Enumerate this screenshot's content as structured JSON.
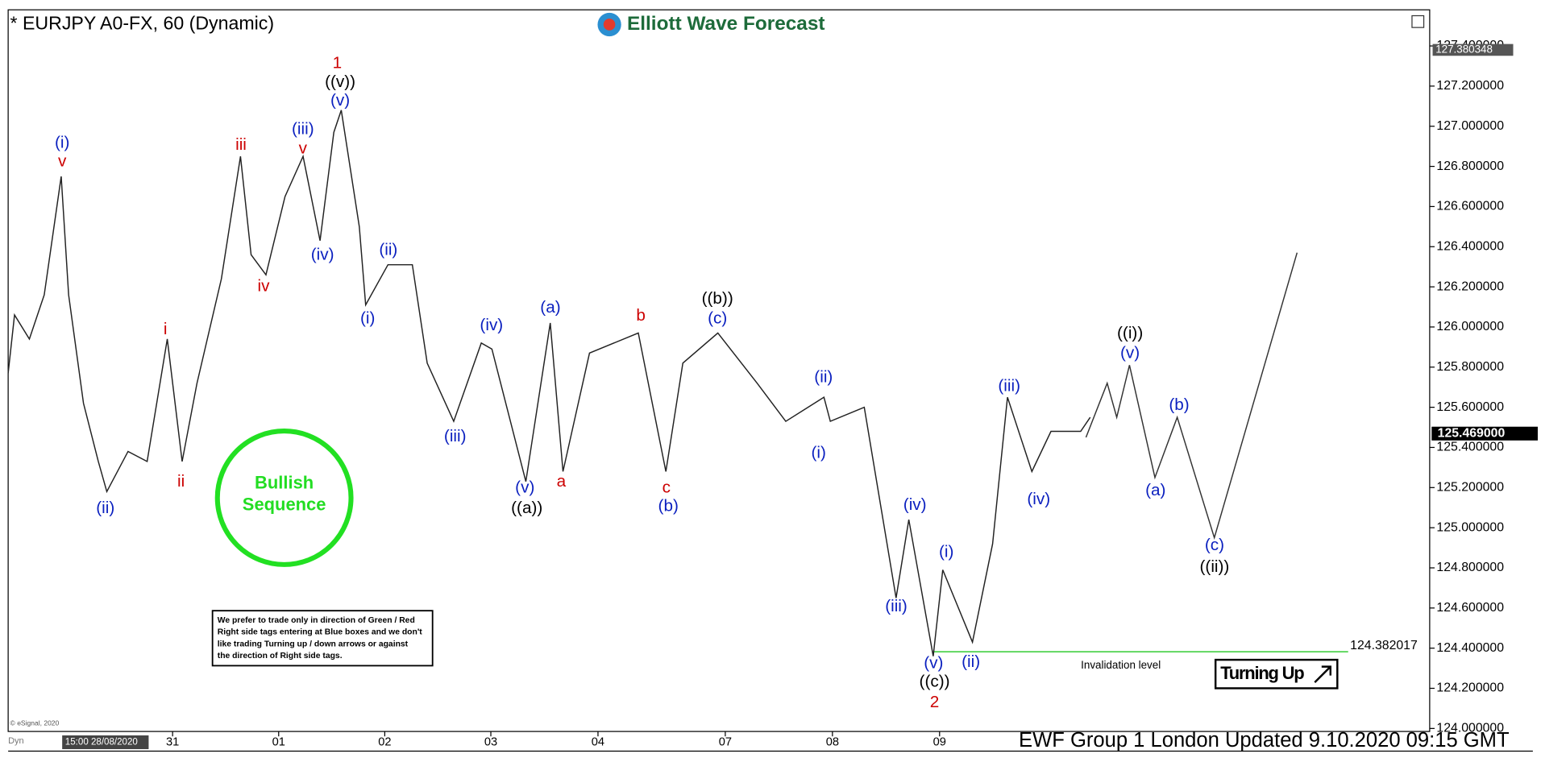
{
  "chart_data": {
    "type": "line",
    "title": "* EURJPY A0-FX, 60 (Dynamic)",
    "brand": "Elliott Wave Forecast",
    "footer": "EWF Group 1 London Updated 9.10.2020 09:15 GMT",
    "copyright": "© eSignal, 2020",
    "start_label": "15:00 28/08/2020",
    "mode_label": "Dyn",
    "xlim": [
      0,
      13.4
    ],
    "ylim": [
      123.985,
      127.58
    ],
    "xticks": [
      {
        "value": 1.55,
        "label": "31"
      },
      {
        "value": 2.55,
        "label": "01"
      },
      {
        "value": 3.55,
        "label": "02"
      },
      {
        "value": 4.55,
        "label": "03"
      },
      {
        "value": 5.56,
        "label": "04"
      },
      {
        "value": 6.76,
        "label": "07"
      },
      {
        "value": 7.77,
        "label": "08"
      },
      {
        "value": 8.78,
        "label": "09"
      }
    ],
    "yticks": [
      {
        "value": 124.0,
        "label": "124.000000"
      },
      {
        "value": 124.2,
        "label": "124.200000"
      },
      {
        "value": 124.4,
        "label": "124.400000"
      },
      {
        "value": 124.6,
        "label": "124.600000"
      },
      {
        "value": 124.8,
        "label": "124.800000"
      },
      {
        "value": 125.0,
        "label": "125.000000"
      },
      {
        "value": 125.2,
        "label": "125.200000"
      },
      {
        "value": 125.4,
        "label": "125.400000"
      },
      {
        "value": 125.6,
        "label": "125.600000"
      },
      {
        "value": 125.8,
        "label": "125.800000"
      },
      {
        "value": 126.0,
        "label": "126.000000"
      },
      {
        "value": 126.2,
        "label": "126.200000"
      },
      {
        "value": 126.4,
        "label": "126.400000"
      },
      {
        "value": 126.6,
        "label": "126.600000"
      },
      {
        "value": 126.8,
        "label": "126.800000"
      },
      {
        "value": 127.0,
        "label": "127.000000"
      },
      {
        "value": 127.2,
        "label": "127.200000"
      },
      {
        "value": 127.4,
        "label": "127.400000"
      }
    ],
    "series": [
      {
        "color": "#222222",
        "x": [
          0,
          0.06,
          0.2,
          0.34,
          0.5,
          0.57,
          0.71,
          0.85,
          0.93,
          1.13,
          1.31,
          1.5,
          1.64,
          1.78,
          2.01,
          2.19,
          2.29,
          2.43,
          2.61,
          2.78,
          2.94,
          3.07,
          3.14,
          3.31,
          3.37,
          3.58,
          3.81,
          3.95,
          4.2,
          4.46,
          4.56,
          4.88,
          5.11,
          5.23,
          5.48,
          5.94,
          6.2,
          6.36,
          6.69,
          7.06,
          7.33,
          7.69,
          7.75,
          8.07,
          8.37,
          8.49,
          8.72,
          8.81,
          9.09,
          9.28,
          9.42,
          9.65,
          9.83,
          10.11,
          10.2
        ],
        "values": [
          125.77,
          126.06,
          125.94,
          126.16,
          126.75,
          126.16,
          125.62,
          125.33,
          125.18,
          125.38,
          125.33,
          125.94,
          125.33,
          125.72,
          126.24,
          126.85,
          126.36,
          126.26,
          126.65,
          126.85,
          126.43,
          126.97,
          127.08,
          126.5,
          126.11,
          126.31,
          126.31,
          125.82,
          125.53,
          125.92,
          125.89,
          125.23,
          126.02,
          125.28,
          125.87,
          125.97,
          125.28,
          125.82,
          125.97,
          125.72,
          125.53,
          125.65,
          125.53,
          125.6,
          124.65,
          125.04,
          124.36,
          124.79,
          124.43,
          124.92,
          125.65,
          125.28,
          125.48,
          125.48,
          125.55
        ]
      },
      {
        "color": "#333333",
        "x": [
          10.16,
          10.36,
          10.45,
          10.57,
          10.81,
          11.02,
          11.37,
          12.15
        ],
        "values": [
          125.45,
          125.72,
          125.55,
          125.81,
          125.25,
          125.55,
          124.95,
          126.37
        ]
      }
    ],
    "high_marker": 127.380348,
    "last_price": {
      "value": 125.469,
      "label": "125.469000"
    },
    "invalidation": {
      "value": 124.382017,
      "label": "Invalidation level",
      "color": "#33cc33"
    },
    "bullish": [
      "Bullish",
      "Sequence"
    ],
    "turning": "Turning Up",
    "disclaimer": [
      "We prefer to trade only in direction of Green / Red",
      "Right side tags entering at Blue boxes and we don't",
      "like trading Turning up / down arrows or against",
      "the direction of Right side tags."
    ],
    "annotations": [
      {
        "text": "(i)",
        "color": "#0a1fbf"
      },
      {
        "text": "v",
        "color": "#cc0000"
      },
      {
        "text": "(ii)",
        "color": "#0a1fbf"
      },
      {
        "text": "iii",
        "color": "#cc0000"
      },
      {
        "text": "iv",
        "color": "#cc0000"
      },
      {
        "text": "(iii)",
        "color": "#0a1fbf"
      },
      {
        "text": "v",
        "color": "#cc0000"
      },
      {
        "text": "(iv)",
        "color": "#0a1fbf"
      },
      {
        "text": "1",
        "color": "#cc0000"
      },
      {
        "text": "((v))",
        "color": "#000000"
      },
      {
        "text": "(v)",
        "color": "#0a1fbf"
      },
      {
        "text": "i",
        "color": "#cc0000"
      },
      {
        "text": "ii",
        "color": "#cc0000"
      },
      {
        "text": "(i)",
        "color": "#0a1fbf"
      },
      {
        "text": "(ii)",
        "color": "#0a1fbf"
      },
      {
        "text": "(iii)",
        "color": "#0a1fbf"
      },
      {
        "text": "(iv)",
        "color": "#0a1fbf"
      },
      {
        "text": "(v)",
        "color": "#0a1fbf"
      },
      {
        "text": "((a))",
        "color": "#000000"
      },
      {
        "text": "(a)",
        "color": "#0a1fbf"
      },
      {
        "text": "a",
        "color": "#cc0000"
      },
      {
        "text": "b",
        "color": "#cc0000"
      },
      {
        "text": "c",
        "color": "#cc0000"
      },
      {
        "text": "(b)",
        "color": "#0a1fbf"
      },
      {
        "text": "((b))",
        "color": "#000000"
      },
      {
        "text": "(c)",
        "color": "#0a1fbf"
      },
      {
        "text": "(ii)",
        "color": "#0a1fbf"
      },
      {
        "text": "(i)",
        "color": "#0a1fbf"
      },
      {
        "text": "(iii)",
        "color": "#0a1fbf"
      },
      {
        "text": "(iv)",
        "color": "#0a1fbf"
      },
      {
        "text": "(i)",
        "color": "#0a1fbf"
      },
      {
        "text": "(v)",
        "color": "#0a1fbf"
      },
      {
        "text": "((c))",
        "color": "#000000"
      },
      {
        "text": "2",
        "color": "#cc0000"
      },
      {
        "text": "(ii)",
        "color": "#0a1fbf"
      },
      {
        "text": "(iii)",
        "color": "#0a1fbf"
      },
      {
        "text": "(iv)",
        "color": "#0a1fbf"
      },
      {
        "text": "((i))",
        "color": "#000000"
      },
      {
        "text": "(v)",
        "color": "#0a1fbf"
      },
      {
        "text": "(a)",
        "color": "#0a1fbf"
      },
      {
        "text": "(b)",
        "color": "#0a1fbf"
      },
      {
        "text": "(c)",
        "color": "#0a1fbf"
      },
      {
        "text": "((ii))",
        "color": "#000000"
      }
    ]
  }
}
